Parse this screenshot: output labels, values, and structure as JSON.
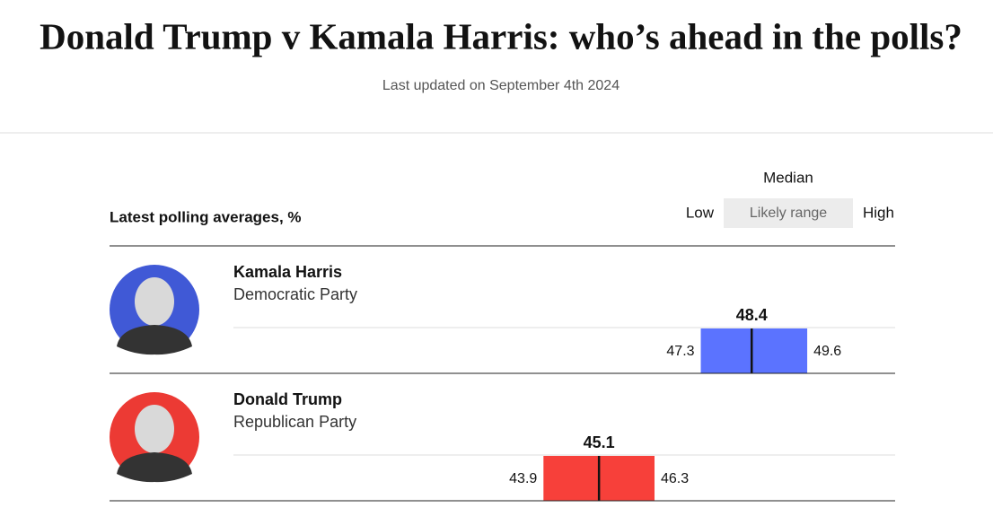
{
  "chart_data": {
    "type": "range",
    "title": "Donald Trump v Kamala Harris: who’s ahead in the polls?",
    "subtitle": "Last updated on September 4th 2024",
    "label": "Latest polling averages, %",
    "legend": {
      "median": "Median",
      "low": "Low",
      "range": "Likely range",
      "high": "High"
    },
    "xlim": [
      37.2,
      51.5
    ],
    "series": [
      {
        "name": "Kamala Harris",
        "party": "Democratic Party",
        "color": "#5b73ff",
        "photo_color": "#4059d6",
        "low": 47.3,
        "median": 48.4,
        "high": 49.6
      },
      {
        "name": "Donald Trump",
        "party": "Republican Party",
        "color": "#f7403a",
        "photo_color": "#ec3a34",
        "low": 43.9,
        "median": 45.1,
        "high": 46.3
      }
    ]
  }
}
